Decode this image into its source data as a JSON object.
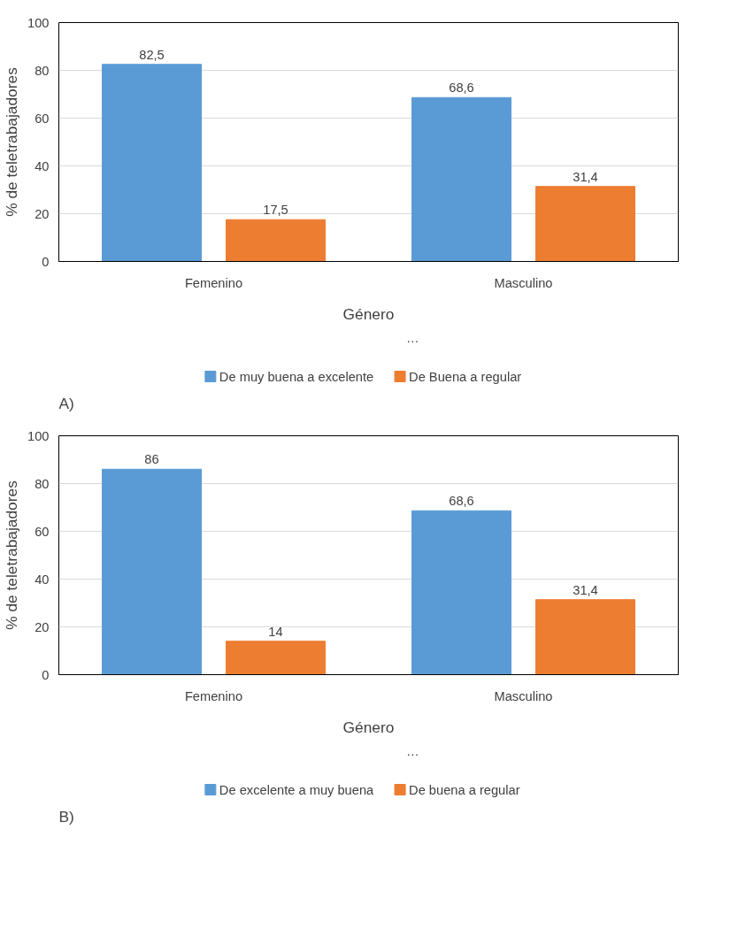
{
  "chart_data": [
    {
      "type": "bar",
      "xlabel": "Género",
      "ylabel": "% de teletrabajadores",
      "categories": [
        "Femenino",
        "Masculino"
      ],
      "series": [
        {
          "name": "De muy buena a excelente",
          "color": "#5b9bd5",
          "values": [
            82.5,
            68.6
          ],
          "value_labels": [
            "82,5",
            "68,6"
          ]
        },
        {
          "name": "De Buena a regular",
          "color": "#ed7d31",
          "values": [
            17.5,
            31.4
          ],
          "value_labels": [
            "17,5",
            "31,4"
          ]
        }
      ],
      "ylim": [
        0,
        100
      ],
      "yticks": [
        0,
        20,
        40,
        60,
        80,
        100
      ],
      "grid": "y",
      "legend": "bottom",
      "annotations": [
        "…",
        "A)"
      ]
    },
    {
      "type": "bar",
      "xlabel": "Género",
      "ylabel": "% de teletrabajadores",
      "categories": [
        "Femenino",
        "Masculino"
      ],
      "series": [
        {
          "name": "De excelente a muy buena",
          "color": "#5b9bd5",
          "values": [
            86,
            68.6
          ],
          "value_labels": [
            "86",
            "68,6"
          ]
        },
        {
          "name": "De buena a regular",
          "color": "#ed7d31",
          "values": [
            14,
            31.4
          ],
          "value_labels": [
            "14",
            "31,4"
          ]
        }
      ],
      "ylim": [
        0,
        100
      ],
      "yticks": [
        0,
        20,
        40,
        60,
        80,
        100
      ],
      "grid": "y",
      "legend": "bottom",
      "annotations": [
        "…",
        "B)"
      ]
    }
  ]
}
